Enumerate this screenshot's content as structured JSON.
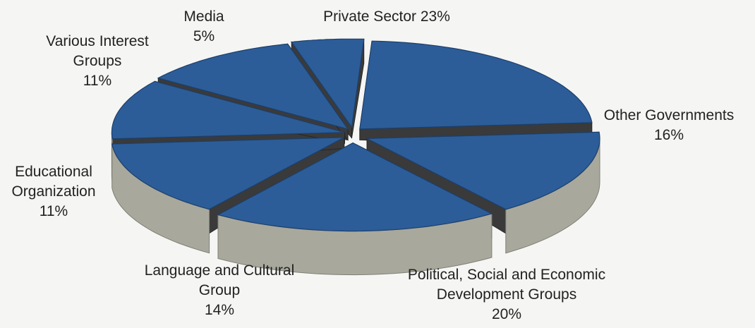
{
  "chart_data": {
    "type": "pie",
    "title": "",
    "slices": [
      {
        "label_lines": [
          "Private Sector 23%"
        ],
        "value": 23
      },
      {
        "label_lines": [
          "Other Governments",
          "16%"
        ],
        "value": 16
      },
      {
        "label_lines": [
          "Political, Social and Economic",
          "Development Groups",
          "20%"
        ],
        "value": 20
      },
      {
        "label_lines": [
          "Language and Cultural",
          "Group",
          "14%"
        ],
        "value": 14
      },
      {
        "label_lines": [
          "Educational",
          "Organization",
          "11%"
        ],
        "value": 11
      },
      {
        "label_lines": [
          "Various Interest",
          "Groups",
          "11%"
        ],
        "value": 11
      },
      {
        "label_lines": [
          "Media",
          "5%"
        ],
        "value": 5
      }
    ],
    "colors": {
      "top": "#2c5d98",
      "top_edge": "#1c3f6c",
      "inner_wall": "#3a3a3a",
      "outer_wall": "#a8a89c",
      "outer_wall_dark": "#7f7f76",
      "divider_gap": "#ffffff"
    }
  }
}
